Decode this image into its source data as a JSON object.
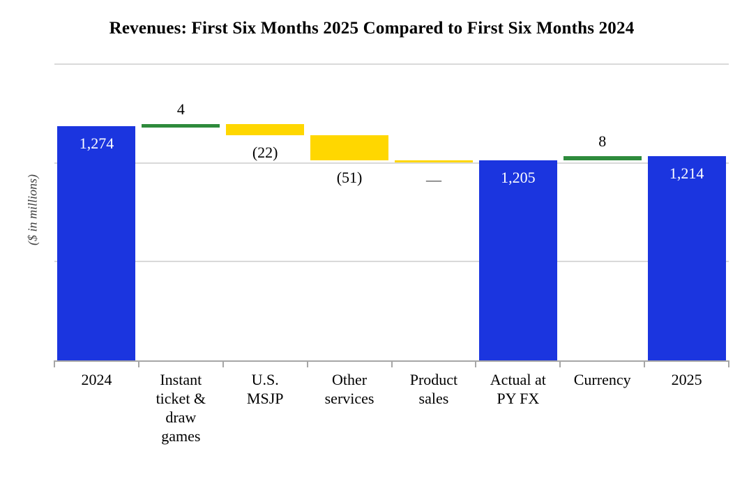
{
  "title": "Revenues: First Six Months 2025 Compared to First Six Months 2024",
  "chart_data": {
    "type": "waterfall",
    "title": "Revenues: First Six Months 2025 Compared to First Six Months 2024",
    "ylabel": "($ in millions)",
    "units": "$ in millions",
    "legend": "none",
    "grid": "horizontal-light",
    "axis": {
      "ymin": 800,
      "ymax": 1400,
      "gridline_step": 200,
      "gridlines": [
        1400,
        1200,
        1000
      ],
      "baseline": 800,
      "tick_labels_shown": false
    },
    "colors": {
      "total": "#1B35DF",
      "increase": "#2E8B3C",
      "decrease": "#FFD700",
      "zero": "#FFD700",
      "inside_label": "#FFFFFF",
      "outside_label": "#000000",
      "zero_label": "#404040",
      "gridline": "#D9D9D9",
      "axis_line": "#A6A6A6"
    },
    "bars": [
      {
        "name": "2024",
        "category_lines": [
          "2024"
        ],
        "kind": "total",
        "from": 800,
        "to": 1274,
        "value": 1274,
        "value_label": "1,274",
        "label_placement": "inside-top"
      },
      {
        "name": "instant-ticket-draw-games",
        "category_lines": [
          "Instant",
          "ticket &",
          "draw",
          "games"
        ],
        "kind": "increase",
        "from": 1274,
        "to": 1278,
        "value": 4,
        "value_label": "4",
        "label_placement": "above"
      },
      {
        "name": "us-msjp",
        "category_lines": [
          "U.S.",
          "MSJP"
        ],
        "kind": "decrease",
        "from": 1278,
        "to": 1256,
        "value": -22,
        "value_label": "(22)",
        "label_placement": "below"
      },
      {
        "name": "other-services",
        "category_lines": [
          "Other",
          "services"
        ],
        "kind": "decrease",
        "from": 1256,
        "to": 1205,
        "value": -51,
        "value_label": "(51)",
        "label_placement": "below"
      },
      {
        "name": "product-sales",
        "category_lines": [
          "Product",
          "sales"
        ],
        "kind": "zero",
        "from": 1205,
        "to": 1205,
        "value": 0,
        "value_label": "—",
        "label_placement": "below"
      },
      {
        "name": "actual-at-py-fx",
        "category_lines": [
          "Actual at",
          "PY FX"
        ],
        "kind": "total",
        "from": 800,
        "to": 1205,
        "value": 1205,
        "value_label": "1,205",
        "label_placement": "inside-top"
      },
      {
        "name": "currency",
        "category_lines": [
          "Currency"
        ],
        "kind": "increase",
        "from": 1205,
        "to": 1213,
        "value": 8,
        "value_label": "8",
        "label_placement": "above"
      },
      {
        "name": "2025",
        "category_lines": [
          "2025"
        ],
        "kind": "total",
        "from": 800,
        "to": 1214,
        "value": 1214,
        "value_label": "1,214",
        "label_placement": "inside-top"
      }
    ]
  }
}
